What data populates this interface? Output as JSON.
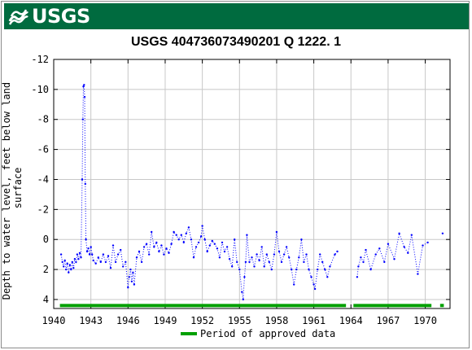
{
  "header": {
    "logo_text": "USGS",
    "logo_icon": "usgs-wave-icon",
    "banner_color": "#006b3f"
  },
  "chart_data": {
    "type": "scatter",
    "title": "USGS 404736073490201 Q  1222. 1",
    "xlabel": "",
    "ylabel": "Depth to water level, feet below land surface",
    "x_tick_labels": [
      "1940",
      "1943",
      "1946",
      "1949",
      "1952",
      "1955",
      "1958",
      "1961",
      "1964",
      "1967",
      "1970"
    ],
    "x_ticks": [
      1940,
      1943,
      1946,
      1949,
      1952,
      1955,
      1958,
      1961,
      1964,
      1967,
      1970
    ],
    "xlim": [
      1940.0,
      1972.0
    ],
    "y_tick_labels": [
      "-12",
      "-10",
      "-8",
      "-6",
      "-4",
      "-2",
      "0",
      "2",
      "4"
    ],
    "y_ticks": [
      -12,
      -10,
      -8,
      -6,
      -4,
      -2,
      0,
      2,
      4
    ],
    "ylim": [
      -12.0,
      4.6
    ],
    "y_inverted": true,
    "grid": true,
    "series_color": "#0000ff",
    "approved_color": "#00a000",
    "series": [
      {
        "name": "",
        "segments": [
          [
            [
              1940.6,
              1.0
            ],
            [
              1940.7,
              1.5
            ],
            [
              1940.8,
              1.8
            ],
            [
              1940.9,
              1.4
            ],
            [
              1941.0,
              2.0
            ],
            [
              1941.1,
              1.6
            ],
            [
              1941.2,
              2.2
            ],
            [
              1941.3,
              1.7
            ],
            [
              1941.4,
              2.0
            ],
            [
              1941.5,
              1.5
            ],
            [
              1941.6,
              1.9
            ],
            [
              1941.7,
              1.3
            ],
            [
              1941.8,
              1.5
            ],
            [
              1941.9,
              1.0
            ],
            [
              1942.0,
              1.3
            ],
            [
              1942.1,
              0.9
            ],
            [
              1942.2,
              1.2
            ],
            [
              1942.3,
              -4.0
            ],
            [
              1942.35,
              -8.0
            ],
            [
              1942.4,
              -10.2
            ],
            [
              1942.45,
              -10.3
            ],
            [
              1942.5,
              -9.5
            ],
            [
              1942.55,
              -3.7
            ],
            [
              1942.6,
              0.0
            ],
            [
              1942.7,
              0.8
            ],
            [
              1942.8,
              0.6
            ],
            [
              1942.9,
              1.0
            ],
            [
              1943.0,
              0.5
            ],
            [
              1943.1,
              1.0
            ],
            [
              1943.2,
              1.4
            ],
            [
              1943.4,
              1.6
            ],
            [
              1943.6,
              1.2
            ],
            [
              1943.8,
              1.5
            ],
            [
              1944.0,
              1.0
            ],
            [
              1944.2,
              1.5
            ],
            [
              1944.4,
              1.1
            ],
            [
              1944.6,
              1.9
            ],
            [
              1944.8,
              0.4
            ],
            [
              1945.0,
              1.5
            ],
            [
              1945.2,
              1.0
            ],
            [
              1945.4,
              0.7
            ],
            [
              1945.6,
              1.8
            ],
            [
              1945.8,
              1.5
            ],
            [
              1946.0,
              3.2
            ],
            [
              1946.1,
              2.5
            ],
            [
              1946.2,
              2.0
            ],
            [
              1946.3,
              2.8
            ],
            [
              1946.4,
              2.2
            ],
            [
              1946.5,
              3.0
            ],
            [
              1946.7,
              1.2
            ],
            [
              1946.9,
              0.8
            ],
            [
              1947.1,
              1.5
            ],
            [
              1947.3,
              0.5
            ],
            [
              1947.5,
              0.3
            ],
            [
              1947.7,
              1.0
            ],
            [
              1947.9,
              -0.5
            ],
            [
              1948.1,
              0.5
            ],
            [
              1948.3,
              0.2
            ],
            [
              1948.5,
              0.8
            ],
            [
              1948.7,
              0.4
            ],
            [
              1948.9,
              1.0
            ],
            [
              1949.1,
              0.6
            ],
            [
              1949.3,
              0.9
            ],
            [
              1949.5,
              0.3
            ],
            [
              1949.7,
              -0.5
            ],
            [
              1949.9,
              -0.3
            ],
            [
              1950.1,
              0.0
            ],
            [
              1950.3,
              -0.3
            ],
            [
              1950.5,
              0.2
            ],
            [
              1950.7,
              -0.4
            ],
            [
              1950.9,
              -0.8
            ],
            [
              1951.1,
              0.0
            ],
            [
              1951.3,
              1.2
            ],
            [
              1951.5,
              0.5
            ],
            [
              1951.7,
              0.2
            ],
            [
              1951.9,
              -0.2
            ],
            [
              1952.0,
              -0.9
            ],
            [
              1952.2,
              0.0
            ],
            [
              1952.4,
              0.8
            ],
            [
              1952.6,
              0.4
            ],
            [
              1952.8,
              0.1
            ],
            [
              1953.0,
              0.3
            ],
            [
              1953.2,
              0.6
            ],
            [
              1953.4,
              1.2
            ],
            [
              1953.6,
              0.2
            ],
            [
              1953.8,
              0.8
            ],
            [
              1954.0,
              0.5
            ],
            [
              1954.2,
              1.3
            ],
            [
              1954.4,
              1.8
            ],
            [
              1954.6,
              0.0
            ],
            [
              1954.8,
              1.5
            ],
            [
              1955.0,
              2.0
            ],
            [
              1955.2,
              3.5
            ],
            [
              1955.3,
              4.0
            ],
            [
              1955.4,
              2.5
            ],
            [
              1955.5,
              1.5
            ],
            [
              1955.6,
              -0.3
            ],
            [
              1955.8,
              1.5
            ],
            [
              1956.0,
              1.2
            ],
            [
              1956.2,
              1.8
            ],
            [
              1956.4,
              1.0
            ],
            [
              1956.6,
              1.4
            ],
            [
              1956.8,
              0.5
            ],
            [
              1957.0,
              1.8
            ],
            [
              1957.2,
              1.0
            ],
            [
              1957.4,
              1.5
            ],
            [
              1957.6,
              2.0
            ],
            [
              1957.8,
              1.0
            ],
            [
              1958.0,
              -0.5
            ],
            [
              1958.2,
              0.8
            ],
            [
              1958.4,
              1.5
            ],
            [
              1958.6,
              1.0
            ],
            [
              1958.8,
              0.5
            ],
            [
              1959.0,
              1.2
            ],
            [
              1959.2,
              2.0
            ],
            [
              1959.4,
              3.0
            ],
            [
              1959.6,
              2.0
            ],
            [
              1959.8,
              1.2
            ],
            [
              1960.0,
              0.0
            ],
            [
              1960.2,
              1.5
            ],
            [
              1960.4,
              1.0
            ],
            [
              1960.6,
              2.0
            ],
            [
              1960.8,
              2.5
            ],
            [
              1961.0,
              3.0
            ],
            [
              1961.1,
              3.3
            ],
            [
              1961.3,
              2.0
            ],
            [
              1961.5,
              1.0
            ],
            [
              1961.7,
              1.5
            ],
            [
              1961.9,
              2.0
            ],
            [
              1962.1,
              2.5
            ],
            [
              1962.3,
              1.8
            ],
            [
              1962.7,
              1.0
            ],
            [
              1962.9,
              0.8
            ]
          ],
          [
            [
              1964.5,
              2.5
            ],
            [
              1964.6,
              1.8
            ],
            [
              1964.8,
              1.2
            ],
            [
              1965.0,
              1.5
            ],
            [
              1965.2,
              0.7
            ],
            [
              1965.6,
              2.0
            ],
            [
              1966.0,
              1.0
            ],
            [
              1966.3,
              0.6
            ],
            [
              1966.7,
              1.5
            ],
            [
              1967.0,
              0.3
            ],
            [
              1967.5,
              1.3
            ],
            [
              1967.9,
              -0.4
            ],
            [
              1968.3,
              0.5
            ],
            [
              1968.6,
              0.9
            ],
            [
              1968.9,
              -0.3
            ],
            [
              1969.4,
              2.3
            ],
            [
              1969.8,
              0.4
            ],
            [
              1970.2,
              0.2
            ]
          ],
          [
            [
              1971.4,
              -0.4
            ]
          ]
        ]
      }
    ],
    "approved_periods": [
      [
        1940.5,
        1963.6
      ],
      [
        1964.2,
        1970.5
      ],
      [
        1971.2,
        1971.5
      ]
    ],
    "approved_y": 4.4,
    "legend": {
      "label": "Period of approved data",
      "placement": "bottom-center"
    }
  }
}
